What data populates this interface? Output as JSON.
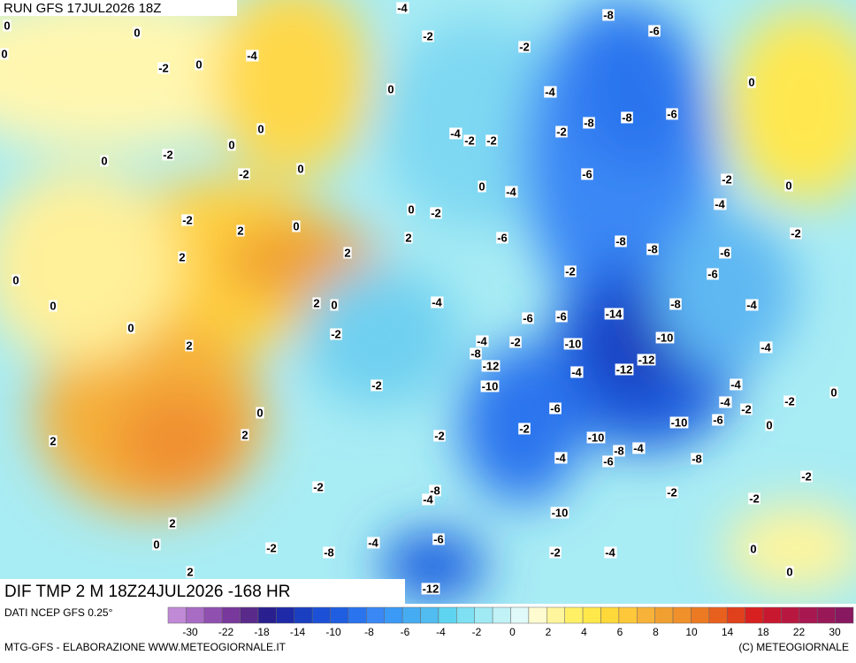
{
  "header": {
    "run": "RUN GFS 17JUL2026 18Z",
    "title": "DIF TMP 2 M 18Z24JUL2026 -168 HR",
    "source": "DATI NCEP GFS 0.25°",
    "footer": "MTG-GFS - ELABORAZIONE WWW.METEOGIORNALE.IT",
    "copyright": "(C) METEOGIORNALE"
  },
  "scale": {
    "colors": [
      "#c08ad6",
      "#a86cc4",
      "#9050b0",
      "#78389c",
      "#5a2a8a",
      "#2a1f8f",
      "#1e2aa8",
      "#1a3fc0",
      "#1c50d6",
      "#1f5ee0",
      "#2a74ee",
      "#3a88f5",
      "#3a9af5",
      "#46acf2",
      "#50bcf0",
      "#5fd4f0",
      "#7ee0f2",
      "#a0eaf4",
      "#c0f2f6",
      "#e0fafa",
      "#fffbd0",
      "#fff59c",
      "#fff066",
      "#ffe84a",
      "#ffd83a",
      "#ffc83a",
      "#f7b23a",
      "#f0a030",
      "#f0902a",
      "#ec7a22",
      "#e8601e",
      "#e0401c",
      "#d82020",
      "#c81830",
      "#b81840",
      "#a81850",
      "#981858",
      "#881860"
    ],
    "ticks": [
      -30,
      -22,
      -18,
      -14,
      -10,
      -8,
      -6,
      -4,
      -2,
      0,
      2,
      4,
      6,
      8,
      10,
      14,
      18,
      22,
      30
    ]
  },
  "map": {
    "labels": [
      0,
      0,
      0,
      -2,
      0,
      -4,
      0,
      -2,
      -4,
      -2,
      -6,
      -8,
      -4,
      -8,
      -8,
      -6,
      0,
      -2,
      -4,
      -2,
      -2,
      0,
      -2,
      0,
      0,
      0,
      -2,
      0,
      -4,
      -6,
      -2,
      0,
      0,
      -2,
      -4,
      -2,
      2,
      0,
      2,
      -6,
      -8,
      -8,
      -6,
      -2,
      0,
      2,
      2,
      -2,
      -6,
      0,
      2,
      0,
      -4,
      -14,
      -8,
      -4,
      -6,
      -6,
      0,
      2,
      -2,
      -4,
      -2,
      -10,
      -10,
      -4,
      -8,
      -12,
      -12,
      -12,
      -4,
      -2,
      -10,
      -4,
      0,
      -6,
      -4,
      -2,
      -2,
      0,
      -10,
      -6,
      0,
      2,
      -2,
      -2,
      -10,
      2,
      -8,
      -4,
      -4,
      -6,
      -8,
      -2,
      -2,
      -8,
      -4,
      -2,
      -2,
      -10,
      2,
      -2,
      0,
      -2,
      -8,
      -4,
      -6,
      -4,
      0,
      2,
      0,
      -12
    ]
  }
}
